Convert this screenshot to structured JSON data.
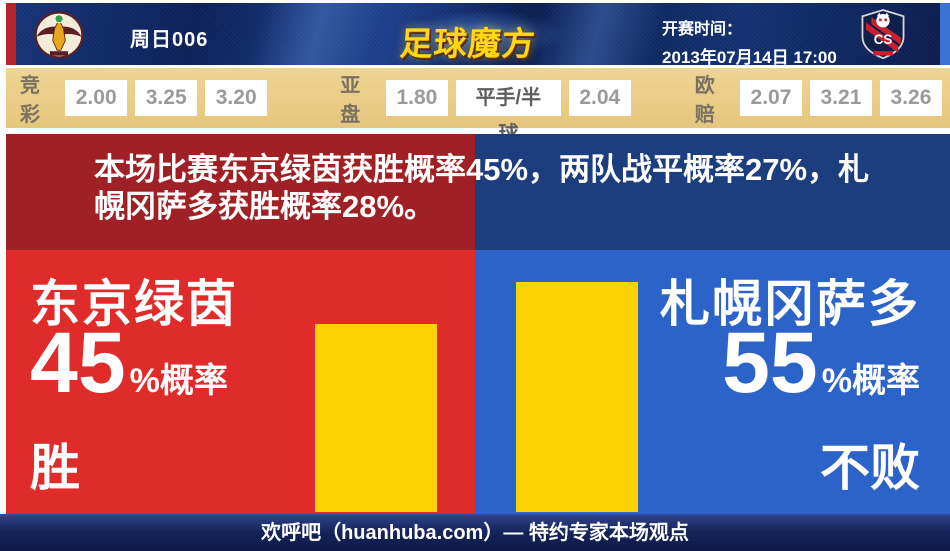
{
  "header": {
    "match_label": "周日006",
    "site_logo_text": "足球魔方",
    "kickoff_label": "开赛时间：",
    "kickoff_datetime": "2013年07月14日 17:00"
  },
  "odds": {
    "jingcai": {
      "label": "竞彩",
      "values": [
        "2.00",
        "3.25",
        "3.20"
      ]
    },
    "yapan": {
      "label": "亚盘",
      "values": [
        "1.80",
        "平手/半球",
        "2.04"
      ]
    },
    "oupei": {
      "label": "欧赔",
      "values": [
        "2.07",
        "3.21",
        "3.26"
      ]
    }
  },
  "summary_text": "本场比赛东京绿茵获胜概率45%，两队战平概率27%，札幌冈萨多获胜概率28%。",
  "panels": {
    "left": {
      "team": "东京绿茵",
      "percent": "45",
      "suffix": "%概率",
      "outcome": "胜",
      "bar_percent": 45
    },
    "right": {
      "team": "札幌冈萨多",
      "percent": "55",
      "suffix": "%概率",
      "outcome": "不败",
      "bar_percent": 55
    }
  },
  "footer": {
    "text": "欢呼吧（huanhuba.com）— 特约专家本场观点"
  },
  "colors": {
    "panel_red": "#e02b2b",
    "panel_blue": "#2b63c9",
    "banner_red": "#a02125",
    "banner_navy": "#1d3e7e",
    "bar_yellow": "#fcd205",
    "odds_bg": "#e9cd8a",
    "header_navy": "#122a66",
    "footer_navy": "#13215a",
    "logo_gold": "#ffd713",
    "header_accent_red": "#b5242a",
    "header_accent_blue": "#3a72d4"
  },
  "chart_data": {
    "type": "bar",
    "categories": [
      "东京绿茵 胜",
      "札幌冈萨多 不败"
    ],
    "values": [
      45,
      55
    ],
    "unit": "%",
    "probabilities": {
      "home_win_pct": 45,
      "draw_pct": 27,
      "away_win_pct": 28
    },
    "bar_color": "#fcd205",
    "ylim": [
      0,
      100
    ]
  }
}
